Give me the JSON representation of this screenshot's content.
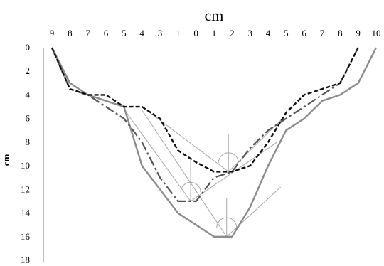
{
  "chart_data": {
    "type": "line",
    "title": "cm",
    "xlabel": "",
    "ylabel": "cm",
    "x_tick_labels": [
      "9",
      "8",
      "7",
      "6",
      "5",
      "4",
      "3",
      "1",
      "0",
      "1",
      "2",
      "3",
      "4",
      "5",
      "6",
      "7",
      "8",
      "9",
      "10"
    ],
    "x_tick_index_range": [
      0,
      18
    ],
    "ylim": [
      0,
      18
    ],
    "y_inverted": true,
    "y_ticks": [
      "0",
      "2",
      "4",
      "6",
      "8",
      "10",
      "12",
      "14",
      "16",
      "18"
    ],
    "grid": false,
    "legend": "none",
    "series": [
      {
        "style": "solid-gray",
        "color": "#8c8c8c",
        "x": [
          0,
          1,
          2,
          3,
          4,
          5,
          6,
          7,
          9,
          10,
          11,
          12,
          13,
          14,
          15,
          16,
          17,
          18
        ],
        "y": [
          0,
          3,
          4,
          4.5,
          5,
          10,
          12,
          14,
          16,
          16,
          13.5,
          10,
          7,
          6,
          4.5,
          4,
          3,
          0
        ]
      },
      {
        "style": "dash-dot",
        "color": "#555555",
        "x": [
          0,
          1,
          2,
          3,
          4,
          5,
          6,
          7,
          8,
          9,
          10,
          11,
          12,
          13,
          14,
          15,
          16,
          17
        ],
        "y": [
          0,
          3.5,
          4,
          5,
          6,
          8,
          11,
          13,
          13,
          11,
          10.5,
          8.5,
          7,
          6,
          5,
          4,
          3,
          0
        ]
      },
      {
        "style": "dashed",
        "color": "#111111",
        "x": [
          0,
          1,
          2,
          3,
          4,
          5,
          6,
          7,
          8,
          9,
          10,
          11,
          12,
          13,
          14,
          15,
          16,
          17
        ],
        "y": [
          0,
          3.5,
          4,
          4,
          5,
          5,
          6,
          8.7,
          9.7,
          10.5,
          10.5,
          10,
          8,
          5.5,
          4,
          3.5,
          3,
          0
        ]
      }
    ],
    "reference_triangles": [
      {
        "x": [
          4,
          7.7,
          12.5
        ],
        "y": [
          5.2,
          13,
          8
        ]
      },
      {
        "x": [
          5,
          9.7,
          12.7
        ],
        "y": [
          5.3,
          16,
          11.8
        ]
      },
      {
        "x": [
          5,
          9.8,
          12.8
        ],
        "y": [
          5,
          10.5,
          6
        ]
      }
    ],
    "angle_markers": [
      {
        "x": 7.7,
        "y": 13,
        "stem_top": 9.5
      },
      {
        "x": 9.7,
        "y": 16,
        "stem_top": 12.7
      },
      {
        "x": 9.8,
        "y": 10.5,
        "stem_top": 7.3
      }
    ]
  }
}
